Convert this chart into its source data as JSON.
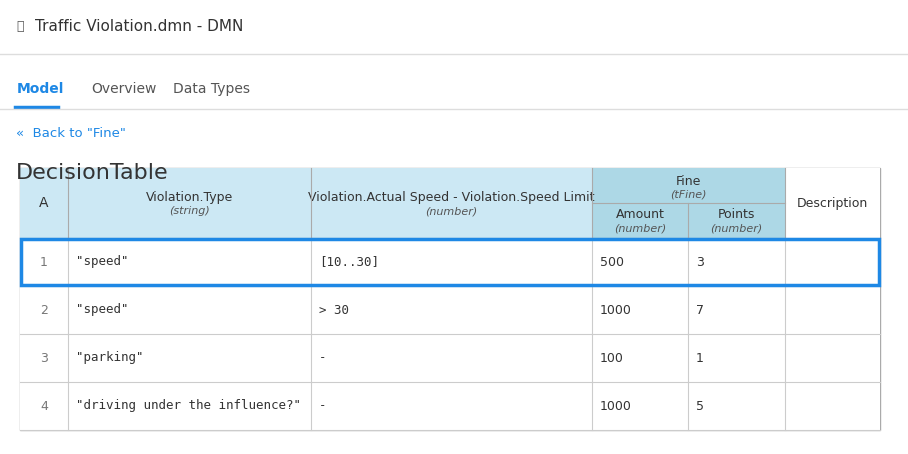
{
  "title": "Traffic Violation.dmn - DMN",
  "tabs": [
    "Model",
    "Overview",
    "Data Types"
  ],
  "active_tab": "Model",
  "back_link": "Back to \"Fine\"",
  "section_title": "DecisionTable",
  "header_bg": "#cce8f4",
  "header_fine_bg": "#add8e6",
  "row_bg_odd": "#ffffff",
  "row_bg_even": "#ffffff",
  "highlight_border": "#1e88e5",
  "table_border": "#cccccc",
  "col_A_label": "A",
  "col1_label": "Violation.Type",
  "col1_sub": "(string)",
  "col2_label": "Violation.Actual Speed - Violation.Speed Limit",
  "col2_sub": "(number)",
  "fine_label": "Fine",
  "fine_sub": "(tFine)",
  "amount_label": "Amount",
  "amount_sub": "(number)",
  "points_label": "Points",
  "points_sub": "(number)",
  "desc_label": "Description",
  "rows": [
    {
      "num": "1",
      "type": "\"speed\"",
      "speed": "[10..30]",
      "amount": "500",
      "points": "3",
      "desc": "",
      "highlight": true
    },
    {
      "num": "2",
      "type": "\"speed\"",
      "speed": "> 30",
      "amount": "1000",
      "points": "7",
      "desc": "",
      "highlight": false
    },
    {
      "num": "3",
      "type": "\"parking\"",
      "speed": "-",
      "amount": "100",
      "points": "1",
      "desc": "",
      "highlight": false
    },
    {
      "num": "4",
      "type": "\"driving under the influence?\"",
      "speed": "-",
      "amount": "1000",
      "points": "5",
      "desc": "",
      "highlight": false
    }
  ],
  "page_bg": "#f5f5f5",
  "font_color": "#333333",
  "tab_active_color": "#1e88e5",
  "tab_inactive_color": "#555555",
  "link_color": "#1e88e5"
}
